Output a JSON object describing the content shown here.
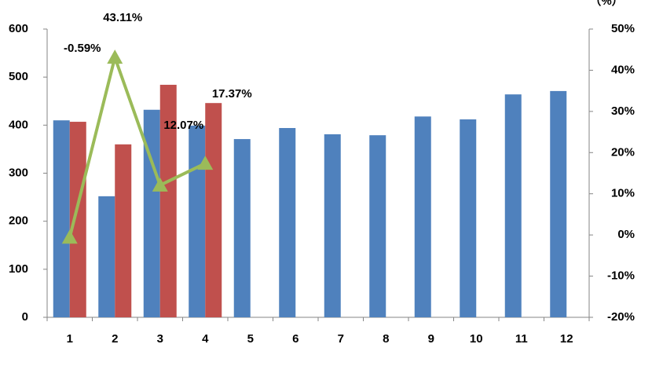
{
  "chart_data": {
    "type": "bar_line",
    "y2_label": "（%）",
    "categories": [
      "1",
      "2",
      "3",
      "4",
      "5",
      "6",
      "7",
      "8",
      "9",
      "10",
      "11",
      "12"
    ],
    "series": [
      {
        "type": "bar",
        "color": "#4f81bd",
        "values": [
          410,
          252,
          432,
          399,
          371,
          394,
          381,
          379,
          418,
          412,
          464,
          471
        ]
      },
      {
        "type": "bar",
        "color": "#c0504d",
        "values": [
          407,
          360,
          484,
          446,
          null,
          null,
          null,
          null,
          null,
          null,
          null,
          null
        ]
      },
      {
        "type": "line",
        "axis": "y2",
        "color": "#9bbb59",
        "values": [
          -0.59,
          43.11,
          12.07,
          17.37,
          null,
          null,
          null,
          null,
          null,
          null,
          null,
          null
        ],
        "value_labels": [
          "-0.59%",
          "43.11%",
          "12.07%",
          "17.37%",
          null,
          null,
          null,
          null,
          null,
          null,
          null,
          null
        ]
      }
    ],
    "ylim": [
      0,
      600
    ],
    "yticks": [
      0,
      100,
      200,
      300,
      400,
      500,
      600
    ],
    "y2lim": [
      -20,
      50
    ],
    "y2ticks": [
      {
        "value": -20,
        "label": "-20%"
      },
      {
        "value": -10,
        "label": "-10%"
      },
      {
        "value": 0,
        "label": "0%"
      },
      {
        "value": 10,
        "label": "10%"
      },
      {
        "value": 20,
        "label": "20%"
      },
      {
        "value": 30,
        "label": "30%"
      },
      {
        "value": 40,
        "label": "40%"
      },
      {
        "value": 50,
        "label": "50%"
      }
    ],
    "grid": false
  }
}
